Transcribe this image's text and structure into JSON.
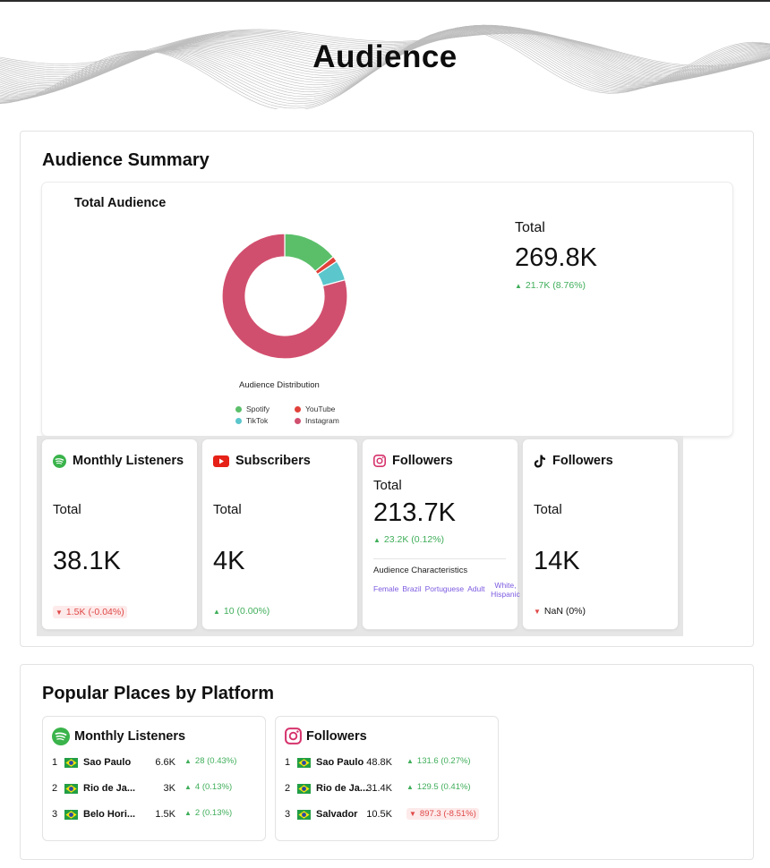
{
  "page": {
    "title": "Audience"
  },
  "colors": {
    "spotify": "#5bbf6a",
    "youtube": "#e0413a",
    "tiktok": "#5bc6cc",
    "instagram": "#d14f6e",
    "positive": "#3fae5a",
    "negative": "#e04848",
    "tag": "#7c5ae0"
  },
  "summary": {
    "title": "Audience Summary",
    "total_card": {
      "heading": "Total Audience",
      "total_label": "Total",
      "total_value": "269.8K",
      "delta": "21.7K (8.76%)",
      "delta_dir": "up"
    },
    "chart_data": {
      "type": "pie",
      "title": "Audience Distribution",
      "categories": [
        "Spotify",
        "YouTube",
        "TikTok",
        "Instagram"
      ],
      "values": [
        38.1,
        4,
        14,
        213.7
      ],
      "colors": [
        "#5bbf6a",
        "#e0413a",
        "#5bc6cc",
        "#d14f6e"
      ],
      "legend_position": "bottom"
    },
    "metrics": [
      {
        "platform": "Spotify",
        "icon": "spotify-icon",
        "label": "Monthly Listeners",
        "total_label": "Total",
        "value": "38.1K",
        "delta": "1.5K (-0.04%)",
        "delta_dir": "down"
      },
      {
        "platform": "YouTube",
        "icon": "youtube-icon",
        "label": "Subscribers",
        "total_label": "Total",
        "value": "4K",
        "delta": "10 (0.00%)",
        "delta_dir": "up"
      },
      {
        "platform": "Instagram",
        "icon": "instagram-icon",
        "label": "Followers",
        "total_label": "Total",
        "value": "213.7K",
        "delta": "23.2K (0.12%)",
        "delta_dir": "up",
        "characteristics_title": "Audience Characteristics",
        "tags": [
          "Female",
          "Brazil",
          "Portuguese",
          "Adult",
          "White, Hispanic"
        ]
      },
      {
        "platform": "TikTok",
        "icon": "tiktok-icon",
        "label": "Followers",
        "total_label": "Total",
        "value": "14K",
        "delta": "NaN (0%)",
        "delta_dir": "down"
      }
    ]
  },
  "places": {
    "title": "Popular Places by Platform",
    "cards": [
      {
        "platform": "Spotify",
        "icon": "spotify-icon",
        "label": "Monthly Listeners",
        "rows": [
          {
            "rank": "1",
            "city": "Sao Paulo",
            "value": "6.6K",
            "delta": "28 (0.43%)",
            "dir": "up"
          },
          {
            "rank": "2",
            "city": "Rio de Ja...",
            "value": "3K",
            "delta": "4 (0.13%)",
            "dir": "up"
          },
          {
            "rank": "3",
            "city": "Belo Hori...",
            "value": "1.5K",
            "delta": "2 (0.13%)",
            "dir": "up"
          }
        ]
      },
      {
        "platform": "Instagram",
        "icon": "instagram-icon",
        "label": "Followers",
        "rows": [
          {
            "rank": "1",
            "city": "Sao Paulo",
            "value": "48.8K",
            "delta": "131.6 (0.27%)",
            "dir": "up"
          },
          {
            "rank": "2",
            "city": "Rio de Ja...",
            "value": "31.4K",
            "delta": "129.5 (0.41%)",
            "dir": "up"
          },
          {
            "rank": "3",
            "city": "Salvador",
            "value": "10.5K",
            "delta": "897.3 (-8.51%)",
            "dir": "down"
          }
        ]
      }
    ]
  }
}
